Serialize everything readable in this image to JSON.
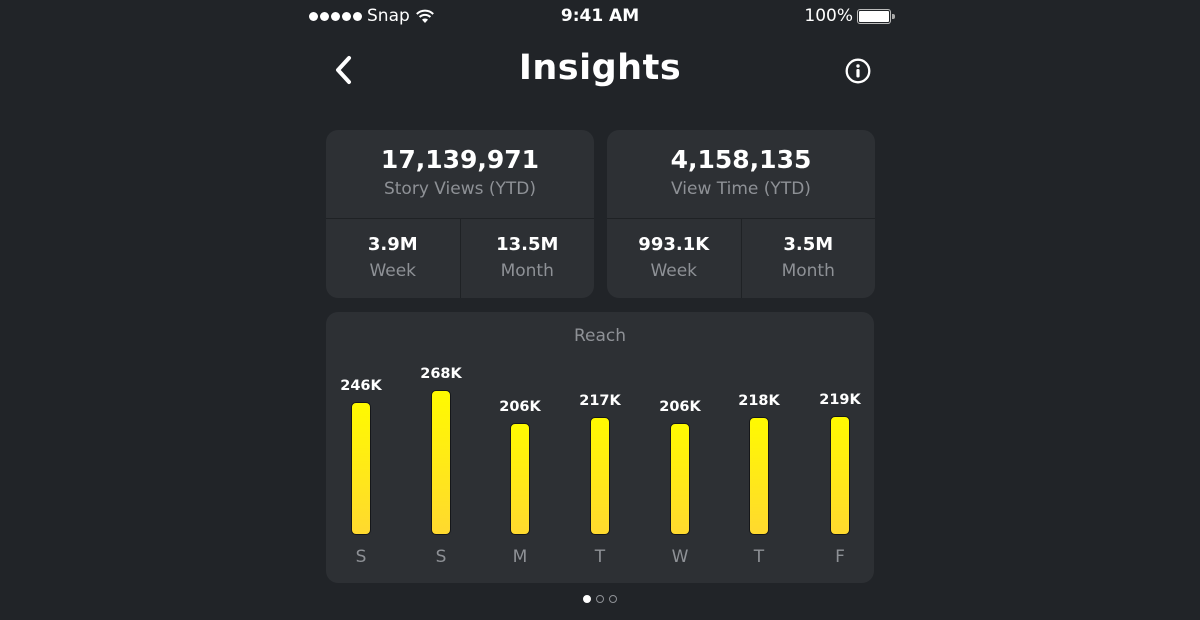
{
  "status_bar": {
    "carrier": "Snap",
    "time": "9:41 AM",
    "battery": "100%"
  },
  "header": {
    "title": "Insights",
    "back_icon": "chevron-left-icon",
    "info_icon": "info-circle-icon"
  },
  "story_views": {
    "value": "17,139,971",
    "label": "Story Views (YTD)",
    "week_value": "3.9M",
    "week_label": "Week",
    "month_value": "13.5M",
    "month_label": "Month"
  },
  "view_time": {
    "value": "4,158,135",
    "label": "View Time (YTD)",
    "week_value": "993.1K",
    "week_label": "Week",
    "month_value": "3.5M",
    "month_label": "Month"
  },
  "reach": {
    "title": "Reach",
    "bars": [
      {
        "day": "S",
        "label": "246K"
      },
      {
        "day": "S",
        "label": "268K"
      },
      {
        "day": "M",
        "label": "206K"
      },
      {
        "day": "T",
        "label": "217K"
      },
      {
        "day": "W",
        "label": "206K"
      },
      {
        "day": "T",
        "label": "218K"
      },
      {
        "day": "F",
        "label": "219K"
      }
    ]
  },
  "pager": {
    "pages": 3,
    "active": 0
  },
  "colors": {
    "background": "#212428",
    "card": "#2d3034",
    "bar_top": "#fffa00",
    "bar_bottom": "#ffd92f",
    "muted_text": "#8e9196"
  },
  "chart_data": {
    "type": "bar",
    "title": "Reach",
    "categories": [
      "S",
      "S",
      "M",
      "T",
      "W",
      "T",
      "F"
    ],
    "values": [
      246000,
      268000,
      206000,
      217000,
      206000,
      218000,
      219000
    ],
    "value_labels": [
      "246K",
      "268K",
      "206K",
      "217K",
      "206K",
      "218K",
      "219K"
    ],
    "xlabel": "",
    "ylabel": "",
    "grid": false,
    "legend": null
  }
}
